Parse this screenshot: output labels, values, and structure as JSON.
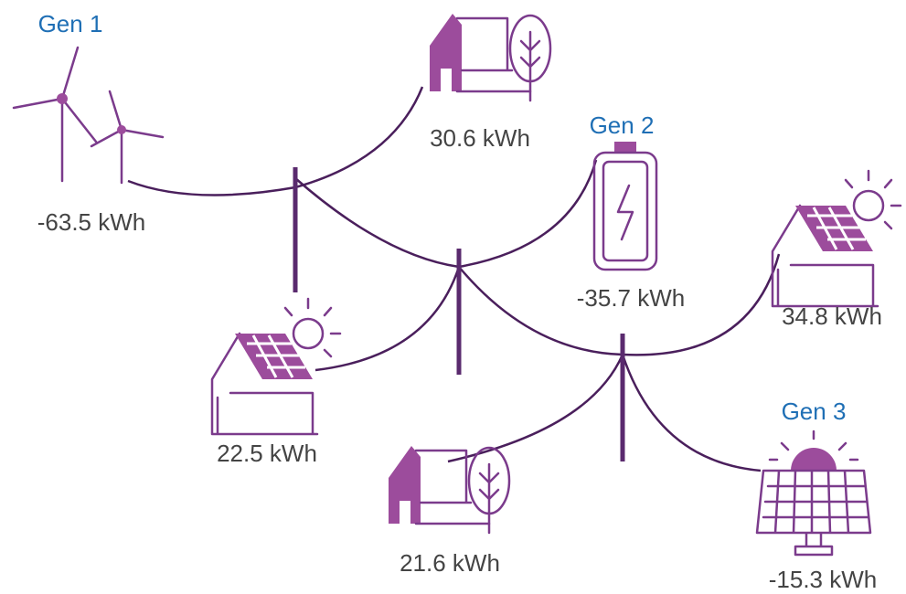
{
  "nodes": [
    {
      "label": "Gen 1",
      "energy": "-63.5 kWh"
    },
    {
      "energy": "30.6 kWh"
    },
    {
      "label": "Gen 2",
      "energy": "-35.7 kWh"
    },
    {
      "energy": "34.8 kWh"
    },
    {
      "energy": "22.5 kWh"
    },
    {
      "energy": "21.6 kWh"
    },
    {
      "label": "Gen 3",
      "energy": "-15.3 kWh"
    }
  ]
}
